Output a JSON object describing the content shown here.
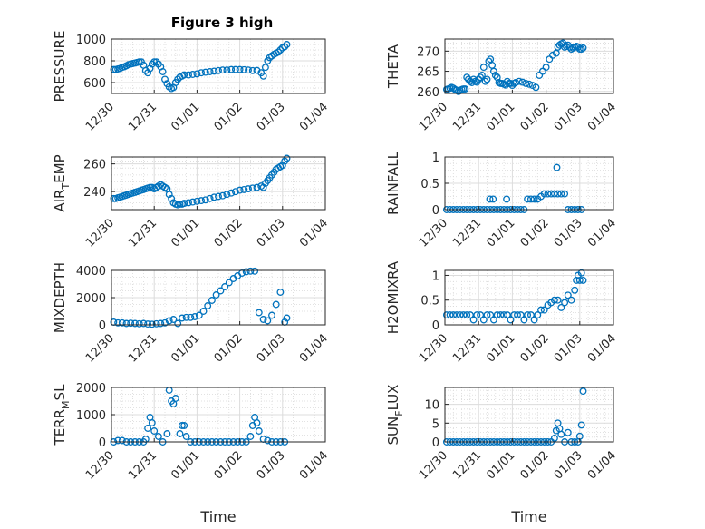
{
  "figure": {
    "title": "Figure 3 high",
    "colors": {
      "marker": "#0072BD",
      "axes": "#262626",
      "grid": "#d9d9d9"
    }
  },
  "chart_data": [
    {
      "type": "scatter",
      "ylabel": "PRESSURE",
      "ylim": [
        500,
        1000
      ],
      "yticks": [
        600,
        800,
        1000
      ],
      "ytick_labels": [
        "600",
        "800",
        "1000"
      ],
      "xtick_labels": [
        "12/30",
        "12/31",
        "01/01",
        "01/02",
        "01/03",
        "01/04"
      ],
      "xlabel": "",
      "x": [
        0.05,
        0.1,
        0.15,
        0.2,
        0.25,
        0.3,
        0.35,
        0.4,
        0.45,
        0.5,
        0.55,
        0.6,
        0.65,
        0.7,
        0.75,
        0.8,
        0.85,
        0.9,
        0.95,
        1.0,
        1.05,
        1.1,
        1.15,
        1.2,
        1.25,
        1.3,
        1.35,
        1.4,
        1.45,
        1.5,
        1.55,
        1.6,
        1.65,
        1.7,
        1.8,
        1.9,
        2.0,
        2.1,
        2.2,
        2.3,
        2.4,
        2.5,
        2.6,
        2.7,
        2.8,
        2.9,
        3.0,
        3.1,
        3.2,
        3.3,
        3.4,
        3.5,
        3.55,
        3.6,
        3.65,
        3.7,
        3.75,
        3.8,
        3.85,
        3.9,
        3.95,
        4.0,
        4.05,
        4.1
      ],
      "y": [
        720,
        720,
        725,
        730,
        740,
        745,
        755,
        765,
        770,
        775,
        780,
        785,
        790,
        790,
        760,
        710,
        690,
        730,
        770,
        790,
        790,
        770,
        745,
        700,
        630,
        590,
        560,
        545,
        555,
        600,
        630,
        650,
        660,
        670,
        670,
        675,
        680,
        690,
        695,
        700,
        705,
        710,
        715,
        715,
        720,
        720,
        720,
        718,
        715,
        710,
        712,
        690,
        660,
        740,
        800,
        830,
        845,
        860,
        870,
        880,
        900,
        920,
        930,
        950
      ]
    },
    {
      "type": "scatter",
      "ylabel": "THETA",
      "ylim": [
        259.5,
        273
      ],
      "yticks": [
        260,
        265,
        270
      ],
      "ytick_labels": [
        "260",
        "265",
        "270"
      ],
      "xtick_labels": [
        "12/30",
        "12/31",
        "01/01",
        "01/02",
        "01/03",
        "01/04"
      ],
      "xlabel": "",
      "x": [
        0.05,
        0.1,
        0.15,
        0.2,
        0.25,
        0.3,
        0.35,
        0.4,
        0.45,
        0.5,
        0.55,
        0.6,
        0.65,
        0.7,
        0.75,
        0.8,
        0.85,
        0.9,
        0.95,
        1.0,
        1.05,
        1.1,
        1.15,
        1.2,
        1.25,
        1.3,
        1.35,
        1.4,
        1.45,
        1.5,
        1.55,
        1.6,
        1.65,
        1.7,
        1.75,
        1.8,
        1.85,
        1.9,
        1.95,
        2.0,
        2.05,
        2.1,
        2.2,
        2.3,
        2.4,
        2.5,
        2.6,
        2.7,
        2.8,
        2.9,
        3.0,
        3.1,
        3.2,
        3.3,
        3.35,
        3.4,
        3.45,
        3.5,
        3.55,
        3.6,
        3.65,
        3.7,
        3.75,
        3.8,
        3.85,
        3.9,
        3.95,
        4.0,
        4.05,
        4.1
      ],
      "y": [
        260.5,
        260.6,
        260.8,
        261,
        260.8,
        260.5,
        260.3,
        260,
        260.2,
        260.5,
        260.6,
        260.6,
        263.5,
        263,
        262.5,
        262.2,
        263,
        262.5,
        262.3,
        263,
        263.5,
        264,
        266,
        262.5,
        263,
        267.5,
        268,
        266.5,
        265,
        264,
        263.5,
        262.2,
        262,
        262,
        261.8,
        261.6,
        262.5,
        262,
        262,
        261.5,
        262,
        262.2,
        262.5,
        262.3,
        262,
        261.8,
        261.5,
        261,
        264,
        265,
        266,
        268,
        269,
        269.5,
        271,
        271.5,
        271.8,
        272,
        271,
        271.2,
        271.5,
        271,
        270.5,
        270.8,
        271,
        271.2,
        271,
        270.5,
        270.5,
        270.8
      ]
    },
    {
      "type": "scatter",
      "ylabel": "AIR_TEMP",
      "ylim": [
        227,
        265
      ],
      "yticks": [
        240,
        260
      ],
      "ytick_labels": [
        "240",
        "260"
      ],
      "xtick_labels": [
        "12/30",
        "12/31",
        "01/01",
        "01/02",
        "01/03",
        "01/04"
      ],
      "xlabel": "",
      "x": [
        0.05,
        0.1,
        0.15,
        0.2,
        0.25,
        0.3,
        0.35,
        0.4,
        0.45,
        0.5,
        0.55,
        0.6,
        0.65,
        0.7,
        0.75,
        0.8,
        0.85,
        0.9,
        0.95,
        1.0,
        1.05,
        1.1,
        1.15,
        1.2,
        1.25,
        1.3,
        1.35,
        1.4,
        1.45,
        1.5,
        1.55,
        1.6,
        1.65,
        1.7,
        1.8,
        1.9,
        2.0,
        2.1,
        2.2,
        2.3,
        2.4,
        2.5,
        2.6,
        2.7,
        2.8,
        2.9,
        3.0,
        3.1,
        3.2,
        3.3,
        3.4,
        3.5,
        3.55,
        3.6,
        3.65,
        3.7,
        3.75,
        3.8,
        3.85,
        3.9,
        3.95,
        4.0,
        4.05,
        4.1
      ],
      "y": [
        235,
        235,
        235.5,
        236,
        236.5,
        237,
        237.5,
        238,
        238.5,
        239,
        239.5,
        240,
        240.5,
        241,
        241.5,
        242,
        242.5,
        243,
        243,
        242,
        243,
        244,
        245,
        244,
        243,
        242,
        238,
        235,
        232,
        231,
        230.5,
        231,
        231,
        231.5,
        232,
        232.5,
        233,
        233.5,
        234,
        235,
        236,
        236.5,
        237,
        238,
        239,
        240,
        241,
        241.5,
        242,
        242.5,
        243,
        244,
        243,
        246,
        248,
        250,
        252,
        254,
        256,
        257,
        258,
        259,
        262,
        264
      ]
    },
    {
      "type": "scatter",
      "ylabel": "RAINFALL",
      "ylim": [
        0,
        1
      ],
      "yticks": [
        0,
        0.5,
        1
      ],
      "ytick_labels": [
        "0",
        "0.5",
        "1"
      ],
      "xtick_labels": [
        "12/30",
        "12/31",
        "01/01",
        "01/02",
        "01/03",
        "01/04"
      ],
      "xlabel": "",
      "x": [
        0.05,
        0.15,
        0.25,
        0.35,
        0.45,
        0.55,
        0.65,
        0.75,
        0.85,
        0.95,
        1.05,
        1.15,
        1.25,
        1.35,
        1.45,
        1.55,
        1.65,
        1.75,
        1.85,
        1.95,
        2.05,
        2.15,
        2.25,
        2.35,
        2.45,
        2.55,
        2.65,
        2.75,
        2.85,
        2.95,
        3.05,
        3.15,
        3.25,
        3.35,
        3.45,
        3.55,
        3.65,
        3.75,
        3.85,
        3.95,
        4.05,
        1.33,
        1.43,
        1.83,
        3.32
      ],
      "y": [
        0,
        0,
        0,
        0,
        0,
        0,
        0,
        0,
        0,
        0,
        0,
        0,
        0,
        0,
        0,
        0,
        0,
        0,
        0,
        0,
        0,
        0,
        0,
        0,
        0.2,
        0.2,
        0.2,
        0.2,
        0.25,
        0.3,
        0.3,
        0.3,
        0.3,
        0.3,
        0.3,
        0.3,
        0,
        0,
        0,
        0,
        0,
        0.2,
        0.2,
        0.2,
        0.8
      ]
    },
    {
      "type": "scatter",
      "ylabel": "MIXDEPTH",
      "ylim": [
        0,
        4000
      ],
      "yticks": [
        0,
        2000,
        4000
      ],
      "ytick_labels": [
        "0",
        "2000",
        "4000"
      ],
      "xtick_labels": [
        "12/30",
        "12/31",
        "01/01",
        "01/02",
        "01/03",
        "01/04"
      ],
      "xlabel": "",
      "x": [
        0.05,
        0.15,
        0.25,
        0.35,
        0.45,
        0.55,
        0.65,
        0.75,
        0.85,
        0.95,
        1.05,
        1.15,
        1.25,
        1.35,
        1.45,
        1.55,
        1.65,
        1.75,
        1.85,
        1.95,
        2.05,
        2.15,
        2.25,
        2.35,
        2.45,
        2.55,
        2.65,
        2.75,
        2.85,
        2.95,
        3.05,
        3.15,
        3.25,
        3.35,
        3.45,
        3.55,
        3.65,
        3.75,
        3.85,
        3.95,
        4.05,
        4.1
      ],
      "y": [
        200,
        150,
        150,
        100,
        120,
        100,
        80,
        100,
        60,
        50,
        80,
        100,
        150,
        300,
        400,
        100,
        500,
        550,
        550,
        600,
        700,
        1000,
        1400,
        1800,
        2200,
        2500,
        2800,
        3100,
        3400,
        3600,
        3800,
        3900,
        3950,
        3950,
        900,
        400,
        300,
        700,
        1500,
        2400,
        200,
        500
      ]
    },
    {
      "type": "scatter",
      "ylabel": "H2OMIXRA",
      "ylim": [
        0,
        1.1
      ],
      "yticks": [
        0,
        0.5,
        1
      ],
      "ytick_labels": [
        "0",
        "0.5",
        "1"
      ],
      "xtick_labels": [
        "12/30",
        "12/31",
        "01/01",
        "01/02",
        "01/03",
        "01/04"
      ],
      "xlabel": "",
      "x": [
        0.05,
        0.15,
        0.25,
        0.35,
        0.45,
        0.55,
        0.65,
        0.75,
        0.85,
        0.95,
        1.05,
        1.15,
        1.25,
        1.35,
        1.45,
        1.55,
        1.65,
        1.75,
        1.85,
        1.95,
        2.05,
        2.15,
        2.25,
        2.35,
        2.45,
        2.55,
        2.65,
        2.75,
        2.85,
        2.95,
        3.05,
        3.15,
        3.25,
        3.35,
        3.45,
        3.55,
        3.65,
        3.75,
        3.85,
        3.9,
        3.95,
        4.0,
        4.05,
        4.1
      ],
      "y": [
        0.2,
        0.2,
        0.2,
        0.2,
        0.2,
        0.2,
        0.2,
        0.2,
        0.1,
        0.2,
        0.2,
        0.1,
        0.2,
        0.2,
        0.1,
        0.2,
        0.2,
        0.2,
        0.2,
        0.1,
        0.2,
        0.2,
        0.2,
        0.1,
        0.2,
        0.2,
        0.1,
        0.2,
        0.3,
        0.3,
        0.4,
        0.45,
        0.5,
        0.5,
        0.35,
        0.45,
        0.6,
        0.5,
        0.7,
        0.9,
        1.0,
        0.9,
        1.05,
        0.9
      ]
    },
    {
      "type": "scatter",
      "ylabel": "TERR_MSL",
      "ylim": [
        0,
        2000
      ],
      "yticks": [
        0,
        1000,
        2000
      ],
      "ytick_labels": [
        "0",
        "1000",
        "2000"
      ],
      "xtick_labels": [
        "12/30",
        "12/31",
        "01/01",
        "01/02",
        "01/03",
        "01/04"
      ],
      "xlabel": "Time",
      "x": [
        0.05,
        0.15,
        0.25,
        0.35,
        0.45,
        0.55,
        0.65,
        0.75,
        0.8,
        0.85,
        0.9,
        0.95,
        1.0,
        1.1,
        1.2,
        1.3,
        1.35,
        1.4,
        1.45,
        1.5,
        1.6,
        1.65,
        1.7,
        1.75,
        1.85,
        1.95,
        2.05,
        2.15,
        2.25,
        2.35,
        2.45,
        2.55,
        2.65,
        2.75,
        2.85,
        2.95,
        3.05,
        3.15,
        3.25,
        3.3,
        3.35,
        3.4,
        3.45,
        3.55,
        3.65,
        3.75,
        3.85,
        3.95,
        4.05
      ],
      "y": [
        0,
        50,
        50,
        0,
        0,
        0,
        0,
        0,
        100,
        500,
        900,
        700,
        400,
        200,
        0,
        300,
        1900,
        1500,
        1400,
        1600,
        300,
        600,
        600,
        200,
        0,
        0,
        0,
        0,
        0,
        0,
        0,
        0,
        0,
        0,
        0,
        0,
        0,
        0,
        200,
        600,
        900,
        700,
        400,
        100,
        50,
        0,
        0,
        0,
        0
      ]
    },
    {
      "type": "scatter",
      "ylabel": "SUN_FLUX",
      "ylim": [
        0,
        14.5
      ],
      "yticks": [
        0,
        5,
        10
      ],
      "ytick_labels": [
        "0",
        "5",
        "10"
      ],
      "xtick_labels": [
        "12/30",
        "12/31",
        "01/01",
        "01/02",
        "01/03",
        "01/04"
      ],
      "xlabel": "Time",
      "x": [
        0.05,
        0.15,
        0.25,
        0.35,
        0.45,
        0.55,
        0.65,
        0.75,
        0.85,
        0.95,
        1.05,
        1.15,
        1.25,
        1.35,
        1.45,
        1.55,
        1.65,
        1.75,
        1.85,
        1.95,
        2.05,
        2.15,
        2.25,
        2.35,
        2.45,
        2.55,
        2.65,
        2.75,
        2.85,
        2.95,
        3.05,
        3.15,
        3.25,
        3.3,
        3.35,
        3.4,
        3.45,
        3.55,
        3.65,
        3.75,
        3.85,
        3.95,
        4.0,
        4.05,
        4.1
      ],
      "y": [
        0,
        0,
        0,
        0,
        0,
        0,
        0,
        0,
        0,
        0,
        0,
        0,
        0,
        0,
        0,
        0,
        0,
        0,
        0,
        0,
        0,
        0,
        0,
        0,
        0,
        0,
        0,
        0,
        0,
        0,
        0,
        0,
        1,
        3,
        5,
        3.5,
        2,
        0,
        2.5,
        0,
        0,
        0,
        1.5,
        4.5,
        13.5
      ]
    }
  ]
}
